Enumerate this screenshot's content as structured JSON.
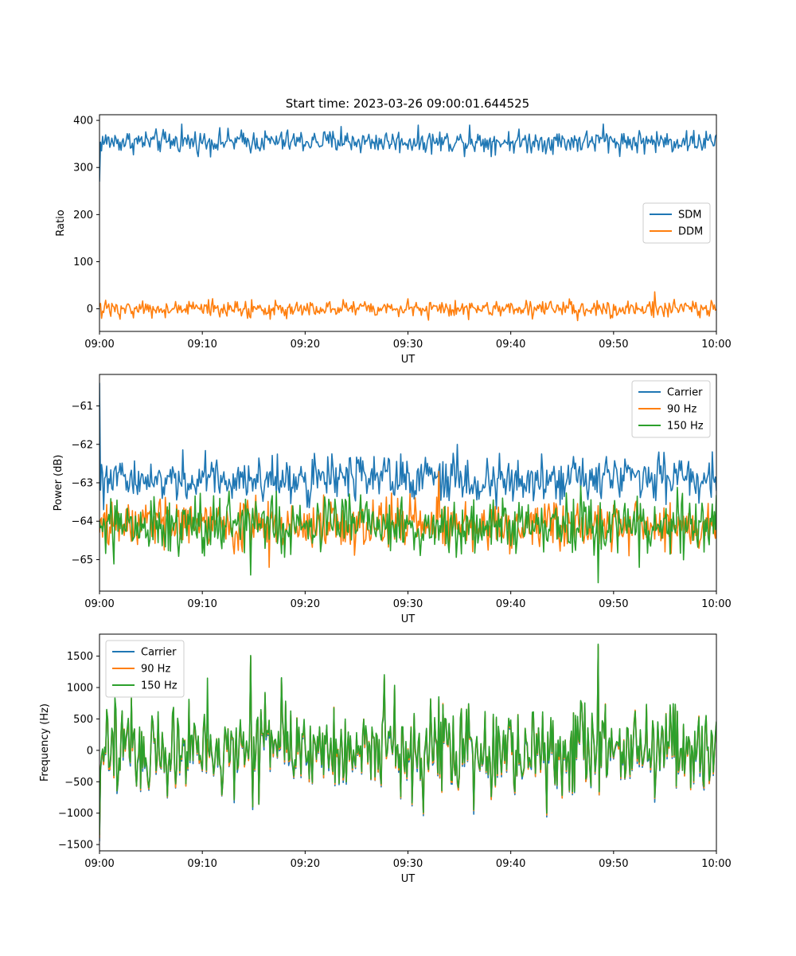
{
  "figure": {
    "title": "Start time: 2023-03-26 09:00:01.644525"
  },
  "chart_data": [
    {
      "type": "line",
      "title": "Start time: 2023-03-26 09:00:01.644525",
      "xlabel": "UT",
      "ylabel": "Ratio",
      "xlim": [
        "09:00",
        "10:00"
      ],
      "ylim": [
        -48,
        412
      ],
      "x_ticks": [
        "09:00",
        "09:10",
        "09:20",
        "09:30",
        "09:40",
        "09:50",
        "10:00"
      ],
      "y_ticks": [
        0,
        100,
        200,
        300,
        400
      ],
      "grid": false,
      "legend": {
        "position": "center-right",
        "entries": [
          "SDM",
          "DDM"
        ]
      },
      "x_step_minutes": 0.1,
      "series": [
        {
          "name": "SDM",
          "color": "#1f77b4",
          "base": 355,
          "noise": 30,
          "start": 270,
          "spikes": [
            [
              8,
              392
            ],
            [
              23.5,
              387
            ],
            [
              36,
              390
            ],
            [
              49,
              392
            ]
          ]
        },
        {
          "name": "DDM",
          "color": "#ff7f0e",
          "base": 0,
          "noise": 22,
          "start": 5,
          "spikes": [
            [
              54,
              36
            ],
            [
              46.5,
              -25
            ],
            [
              32,
              -24
            ],
            [
              2,
              -22
            ]
          ]
        }
      ]
    },
    {
      "type": "line",
      "title": "",
      "xlabel": "UT",
      "ylabel": "Power (dB)",
      "xlim": [
        "09:00",
        "10:00"
      ],
      "ylim": [
        -65.82,
        -60.18
      ],
      "x_ticks": [
        "09:00",
        "09:10",
        "09:20",
        "09:30",
        "09:40",
        "09:50",
        "10:00"
      ],
      "y_ticks": [
        -65,
        -64,
        -63,
        -62,
        -61
      ],
      "grid": false,
      "legend": {
        "position": "upper-right",
        "entries": [
          "Carrier",
          "90 Hz",
          "150 Hz"
        ]
      },
      "x_step_minutes": 0.1,
      "series": [
        {
          "name": "Carrier",
          "color": "#1f77b4",
          "base": -62.9,
          "noise": 0.75,
          "start": -60.4,
          "spikes": [
            [
              34.8,
              -62.0
            ],
            [
              0.4,
              -63.7
            ]
          ]
        },
        {
          "name": "90 Hz",
          "color": "#ff7f0e",
          "base": -64.1,
          "noise": 0.8,
          "start": -64.3,
          "spikes": [
            [
              16.5,
              -65.2
            ],
            [
              51.5,
              -64.9
            ],
            [
              33,
              -62.7
            ]
          ]
        },
        {
          "name": "150 Hz",
          "color": "#2ca02c",
          "base": -64.1,
          "noise": 0.9,
          "start": -64.0,
          "spikes": [
            [
              48.5,
              -65.6
            ],
            [
              14.7,
              -65.4
            ],
            [
              52.5,
              -65.2
            ]
          ]
        }
      ]
    },
    {
      "type": "line",
      "title": "",
      "xlabel": "UT",
      "ylabel": "Frequency (Hz)",
      "xlim": [
        "09:00",
        "10:00"
      ],
      "ylim": [
        -1600,
        1850
      ],
      "x_ticks": [
        "09:00",
        "09:10",
        "09:20",
        "09:30",
        "09:40",
        "09:50",
        "10:00"
      ],
      "y_ticks": [
        -1500,
        -1000,
        -500,
        0,
        500,
        1000,
        1500
      ],
      "grid": false,
      "legend": {
        "position": "upper-left",
        "entries": [
          "Carrier",
          "90 Hz",
          "150 Hz"
        ]
      },
      "x_step_minutes": 0.1,
      "series": [
        {
          "name": "Carrier",
          "color": "#1f77b4",
          "base": -20,
          "noise": 900,
          "start": -1450,
          "spikes": [
            [
              14.7,
              1490
            ],
            [
              48.5,
              1650
            ],
            [
              31.5,
              -1040
            ],
            [
              43.5,
              -1060
            ]
          ]
        },
        {
          "name": "90 Hz",
          "color": "#ff7f0e",
          "base": 0,
          "noise": 900,
          "start": -1400,
          "spikes": [
            [
              14.7,
              1500
            ],
            [
              48.5,
              1670
            ],
            [
              31.5,
              -1010
            ],
            [
              43.5,
              -1030
            ]
          ]
        },
        {
          "name": "150 Hz",
          "color": "#2ca02c",
          "base": 20,
          "noise": 900,
          "start": -1350,
          "spikes": [
            [
              14.7,
              1510
            ],
            [
              48.5,
              1690
            ],
            [
              31.5,
              -990
            ],
            [
              43.5,
              -1000
            ],
            [
              10.5,
              1150
            ]
          ]
        }
      ]
    }
  ]
}
